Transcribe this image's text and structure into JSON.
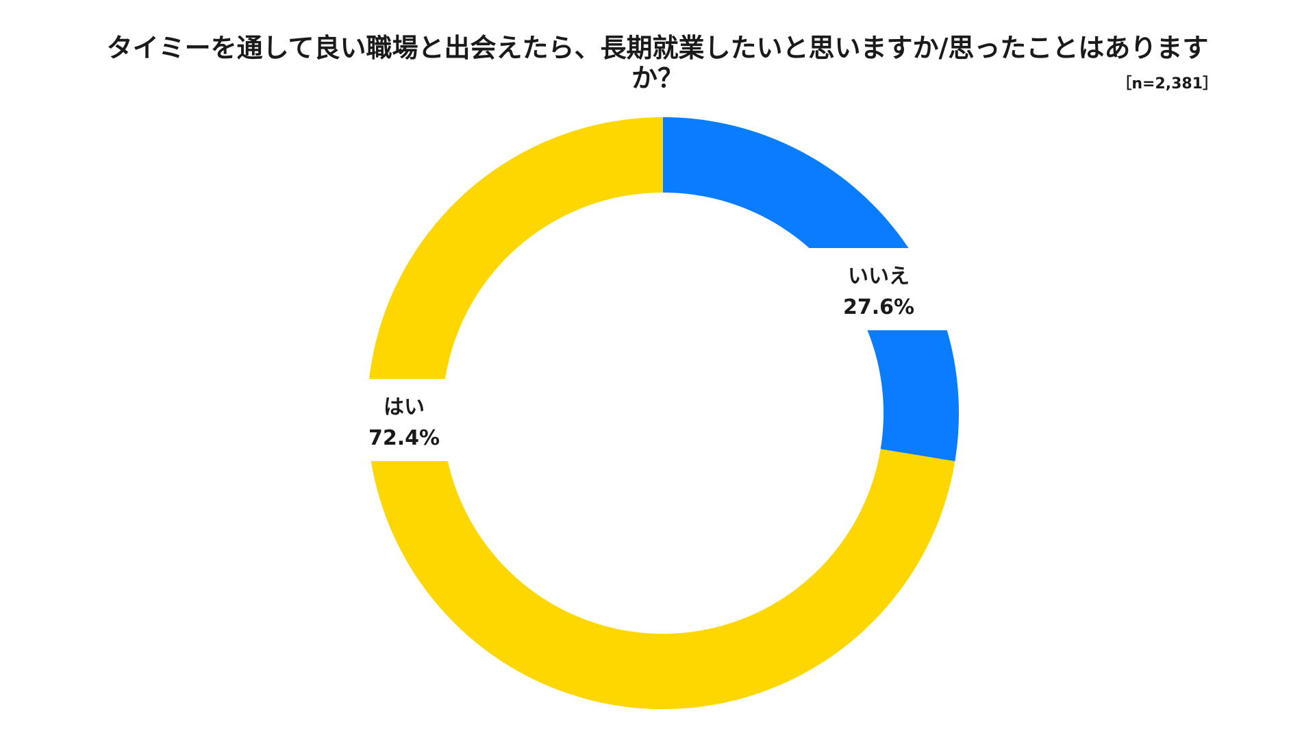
{
  "chart_data": {
    "type": "pie",
    "title": "タイミーを通して良い職場と出会えたら、長期就業したいと思いますか/思ったことはありますか？",
    "sample_size": "［n=2,381］",
    "donut": true,
    "slices": [
      {
        "label": "いいえ",
        "value": 27.6,
        "value_label": "27.6%",
        "color": "#0A7CFF"
      },
      {
        "label": "はい",
        "value": 72.4,
        "value_label": "72.4%",
        "color": "#FFD700"
      }
    ],
    "start_angle_deg": 0,
    "direction": "clockwise"
  }
}
